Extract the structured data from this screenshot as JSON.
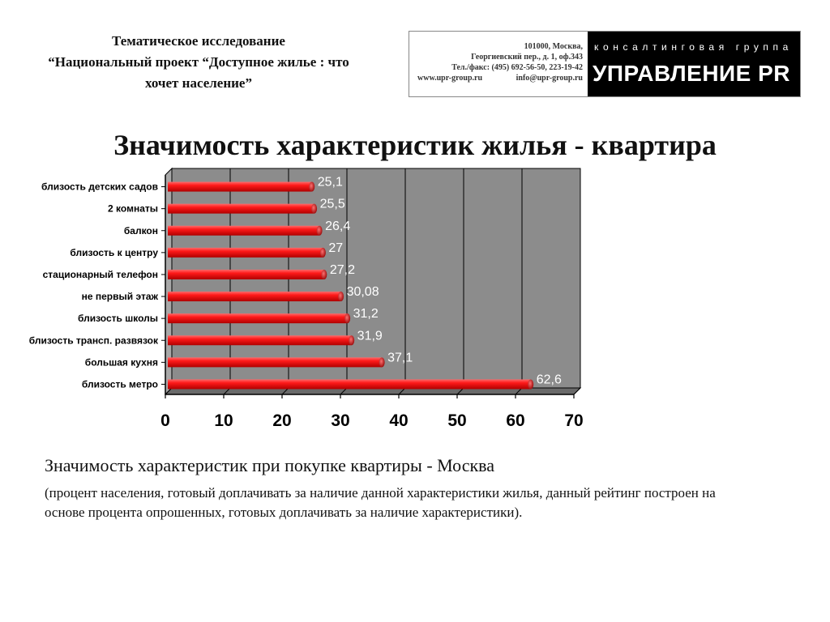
{
  "header": {
    "line1": "Тематическое исследование",
    "line2": "“Национальный проект “Доступное жилье : что",
    "line3": "хочет население”"
  },
  "logo": {
    "address1": "101000, Москва,",
    "address2": "Георгиевский пер., д. 1, оф.343",
    "phone": "Тел./факс: (495) 692-56-50, 223-19-42",
    "website": "www.upr-group.ru",
    "email": "info@upr-group.ru",
    "tagline": "консалтинговая группа",
    "brand": "УПРАВЛЕНИЕ PR",
    "colors": {
      "brand_bg": "#000000",
      "brand_text": "#ffffff"
    }
  },
  "title": "Значимость характеристик жилья - квартира",
  "chart_data": {
    "type": "bar",
    "orientation": "horizontal",
    "categories": [
      "близость детских садов",
      "2 комнаты",
      "балкон",
      "близость к центру",
      "стационарный телефон",
      "не первый этаж",
      "близость школы",
      "близость трансп. развязок",
      "большая кухня",
      "близость метро"
    ],
    "values": [
      25.1,
      25.5,
      26.4,
      27,
      27.2,
      30.08,
      31.2,
      31.9,
      37.1,
      62.6
    ],
    "value_labels": [
      "25,1",
      "25,5",
      "26,4",
      "27",
      "27,2",
      "30,08",
      "31,2",
      "31,9",
      "37,1",
      "62,6"
    ],
    "xlim": [
      0,
      70
    ],
    "xticks": [
      0,
      10,
      20,
      30,
      40,
      50,
      60,
      70
    ],
    "grid": true,
    "legend": "none",
    "colors": {
      "bar": "#e00000",
      "plot_bg": "#8c8c8c",
      "label_text": "#ffffff"
    }
  },
  "caption": "Значимость характеристик при покупке квартиры - Москва",
  "note": "(процент населения, готовый доплачивать за наличие данной характеристики жилья, данный рейтинг построен на основе процента опрошенных, готовых доплачивать за наличие характеристики)."
}
